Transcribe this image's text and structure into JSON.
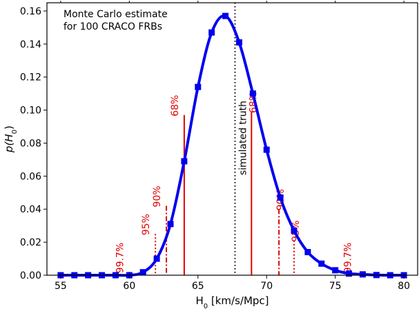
{
  "chart_data": {
    "type": "line",
    "xlabel": "H",
    "xlabel_sub": "0",
    "xlabel_units": " [km/s/Mpc]",
    "ylabel": "p(H",
    "ylabel_sub": "0",
    "ylabel_close": ")",
    "xlim": [
      54,
      81
    ],
    "ylim": [
      0,
      0.165
    ],
    "xticks": [
      55,
      60,
      65,
      70,
      75,
      80
    ],
    "yticks": [
      0.0,
      0.02,
      0.04,
      0.06,
      0.08,
      0.1,
      0.12,
      0.14,
      0.16
    ],
    "grid": false,
    "annotation_lines": [
      "Monte Carlo estimate",
      "for 100 CRACO FRBs"
    ],
    "series": [
      {
        "marker": "square",
        "color": "#0000ee",
        "x": [
          55.0,
          56.0,
          57.0,
          58.0,
          59.0,
          60.0,
          61.0,
          62.0,
          63.0,
          64.0,
          65.0,
          66.0,
          67.0,
          68.0,
          69.0,
          70.0,
          71.0,
          72.0,
          73.0,
          74.0,
          75.0,
          76.0,
          77.0,
          78.0,
          79.0,
          80.0
        ],
        "y": [
          0.0,
          0.0,
          0.0,
          0.0,
          0.0,
          0.0,
          0.0018,
          0.01,
          0.031,
          0.069,
          0.114,
          0.147,
          0.157,
          0.141,
          0.11,
          0.076,
          0.047,
          0.027,
          0.014,
          0.007,
          0.003,
          0.001,
          0.0005,
          0.0001,
          0.0,
          0.0
        ]
      }
    ],
    "truth": {
      "x": 67.7,
      "label": "simulated truth",
      "color": "#000000"
    },
    "intervals": [
      {
        "label": "68%",
        "x_low": 64.0,
        "x_high": 68.9,
        "y_low": 0.097,
        "y_high": 0.099,
        "style": "solid"
      },
      {
        "label": "90%",
        "x_low": 62.7,
        "x_high": 70.9,
        "y_low": 0.042,
        "y_high": 0.04,
        "style": "dashdot"
      },
      {
        "label": "95%",
        "x_low": 61.9,
        "x_high": 72.0,
        "y_low": 0.025,
        "y_high": 0.021,
        "style": "dotted"
      },
      {
        "label": "99.7%",
        "x_low": 60.0,
        "x_high": 75.8,
        "y_low": 0.002,
        "y_high": 0.002,
        "style": "dotted"
      }
    ],
    "colors": {
      "curve": "#0000ee",
      "interval": "#e00000",
      "truth": "#000000"
    }
  }
}
